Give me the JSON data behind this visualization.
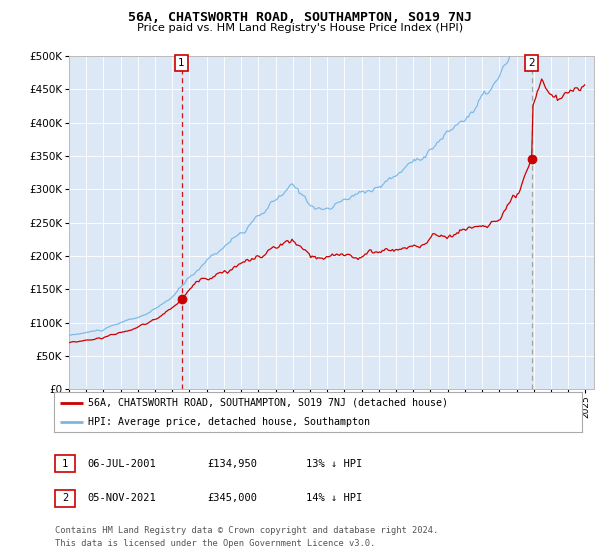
{
  "title": "56A, CHATSWORTH ROAD, SOUTHAMPTON, SO19 7NJ",
  "subtitle": "Price paid vs. HM Land Registry's House Price Index (HPI)",
  "sale1_date": "06-JUL-2001",
  "sale1_price": 134950,
  "sale2_date": "05-NOV-2021",
  "sale2_price": 345000,
  "legend_line1": "56A, CHATSWORTH ROAD, SOUTHAMPTON, SO19 7NJ (detached house)",
  "legend_line2": "HPI: Average price, detached house, Southampton",
  "table_row1": [
    "1",
    "06-JUL-2001",
    "£134,950",
    "13% ↓ HPI"
  ],
  "table_row2": [
    "2",
    "05-NOV-2021",
    "£345,000",
    "14% ↓ HPI"
  ],
  "footnote1": "Contains HM Land Registry data © Crown copyright and database right 2024.",
  "footnote2": "This data is licensed under the Open Government Licence v3.0.",
  "hpi_color": "#7ab8e8",
  "price_color": "#cc0000",
  "vline1_color": "#cc0000",
  "vline2_color": "#888888",
  "plot_bg": "#dce8f5",
  "grid_color": "#ffffff",
  "ylim": [
    0,
    500000
  ],
  "yticks": [
    0,
    50000,
    100000,
    150000,
    200000,
    250000,
    300000,
    350000,
    400000,
    450000,
    500000
  ],
  "start_year": 1995,
  "end_year": 2025
}
